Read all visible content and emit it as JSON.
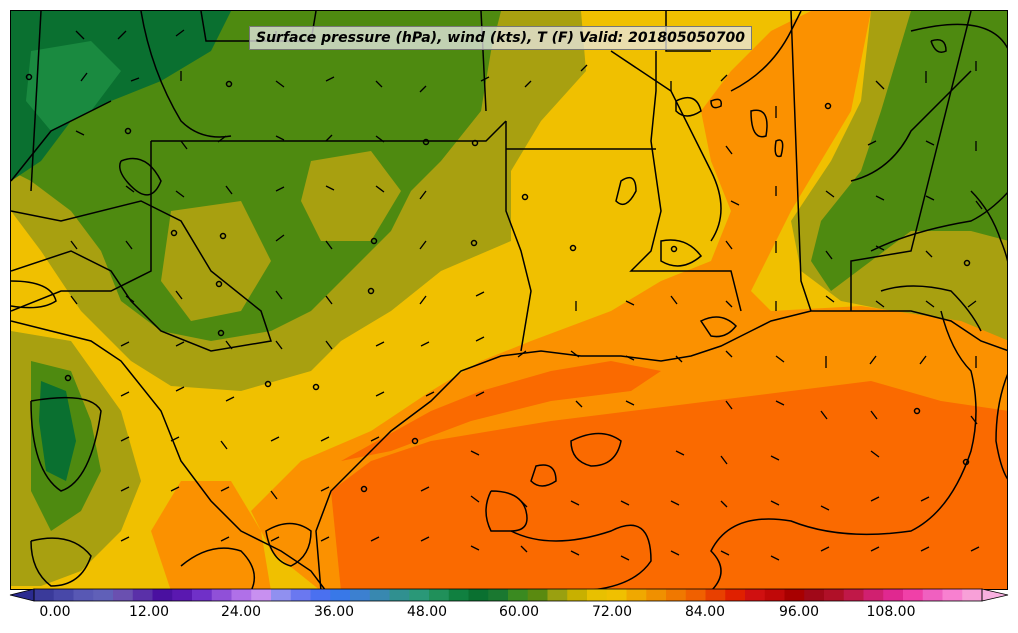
{
  "title": "Surface pressure (hPa), wind (kts), T (F) Valid: 201805050700",
  "colorbar": {
    "tick_labels": [
      "0.00",
      "12.00",
      "24.00",
      "36.00",
      "48.00",
      "60.00",
      "72.00",
      "84.00",
      "96.00",
      "108.00"
    ],
    "colors": [
      "#3a3a9a",
      "#4848a8",
      "#5858b4",
      "#6060b8",
      "#6a50b0",
      "#5a30a8",
      "#4a10a0",
      "#5a18b0",
      "#7030c8",
      "#9050d8",
      "#b070e8",
      "#c890f0",
      "#9090f0",
      "#6a78f0",
      "#4a70f0",
      "#3878e8",
      "#3c80d0",
      "#3888b0",
      "#309090",
      "#2a9878",
      "#20905a",
      "#108040",
      "#0a7030",
      "#1a7830",
      "#3a8a20",
      "#5a8a10",
      "#9aa010",
      "#c8b000",
      "#e8c000",
      "#f0c000",
      "#f0a800",
      "#f09000",
      "#f07800",
      "#f06000",
      "#e84000",
      "#e02000",
      "#d01010",
      "#c00808",
      "#a80000",
      "#a00818",
      "#b01028",
      "#c01848",
      "#d02070",
      "#e02890",
      "#f040a8",
      "#f060c0",
      "#f880d0",
      "#f8a0d8"
    ]
  },
  "colors": {
    "background": "#ffffff",
    "gulf_orange": "#fb9100",
    "gulf_deep": "#fa6a00",
    "land_yellow": "#f0c000",
    "land_olive": "#a8a010",
    "land_green": "#4e8a10",
    "land_dark_green": "#0a7030",
    "contour": "#000000"
  }
}
